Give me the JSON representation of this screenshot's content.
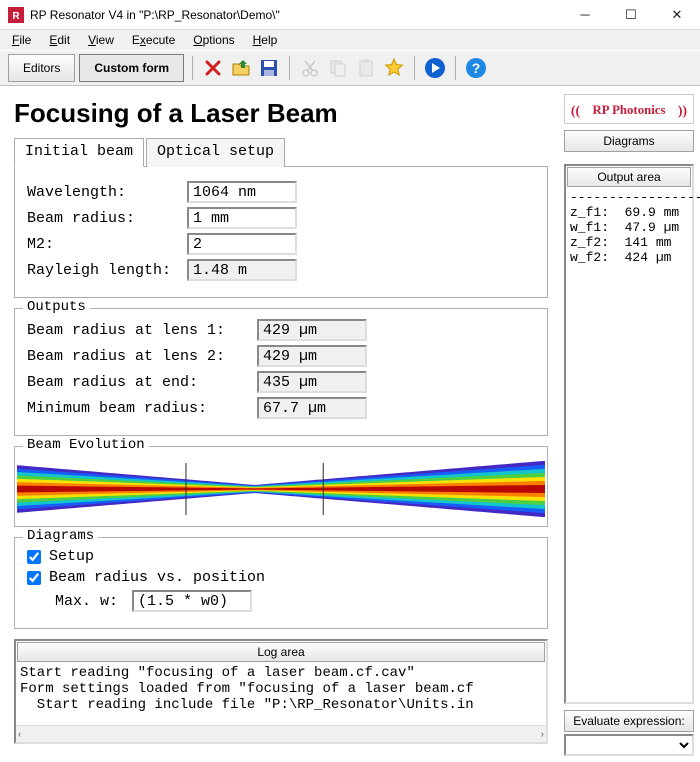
{
  "window": {
    "title": "RP Resonator V4 in \"P:\\RP_Resonator\\Demo\\\""
  },
  "menu": {
    "file": "File",
    "edit": "Edit",
    "view": "View",
    "execute": "Execute",
    "options": "Options",
    "help": "Help"
  },
  "toolbar": {
    "editors": "Editors",
    "custom": "Custom form"
  },
  "page": {
    "title": "Focusing of a Laser Beam"
  },
  "tabs": {
    "t1": "Initial beam",
    "t2": "Optical setup"
  },
  "inputs": {
    "wavelength_label": "Wavelength:",
    "wavelength": "1064 nm",
    "radius_label": "Beam radius:",
    "radius": "1 mm",
    "m2_label": "M2:",
    "m2": "2",
    "rayleigh_label": "Rayleigh length:",
    "rayleigh": "1.48 m"
  },
  "outputs": {
    "legend": "Outputs",
    "l1_label": "Beam radius at lens 1:",
    "l1": "429 µm",
    "l2_label": "Beam radius at lens 2:",
    "l2": "429 µm",
    "end_label": "Beam radius at end:",
    "end": "435 µm",
    "min_label": "Minimum beam radius:",
    "min": "67.7 µm"
  },
  "beam_evo": {
    "legend": "Beam Evolution",
    "colors": [
      "#b40000",
      "#ff7a00",
      "#ffe400",
      "#4fd03b",
      "#14c9c9",
      "#1560ff",
      "#3a1cc0"
    ],
    "lens_positions": [
      0.32,
      0.58
    ],
    "waist_position": 0.45,
    "bg": "#ffffff"
  },
  "diagrams": {
    "legend": "Diagrams",
    "setup": "Setup",
    "bvp": "Beam radius vs. position",
    "maxw_label": "Max. w:",
    "maxw": "(1.5 * w0)"
  },
  "log": {
    "head": "Log area",
    "line1": "Start reading \"focusing of a laser beam.cf.cav\"",
    "line2": "Form settings loaded from \"focusing of a laser beam.cf",
    "line3": "  Start reading include file \"P:\\RP_Resonator\\Units.in"
  },
  "side": {
    "logo_text": "RP Photonics",
    "logo_color": "#c41e3a",
    "diag": "Diagrams",
    "outhead": "Output area",
    "out_sep": "-----------------",
    "out_l1": "z_f1:  69.9 mm",
    "out_l2": "w_f1:  47.9 µm",
    "out_l3": "z_f2:  141 mm",
    "out_l4": "w_f2:  424 µm",
    "eval": "Evaluate expression:"
  }
}
